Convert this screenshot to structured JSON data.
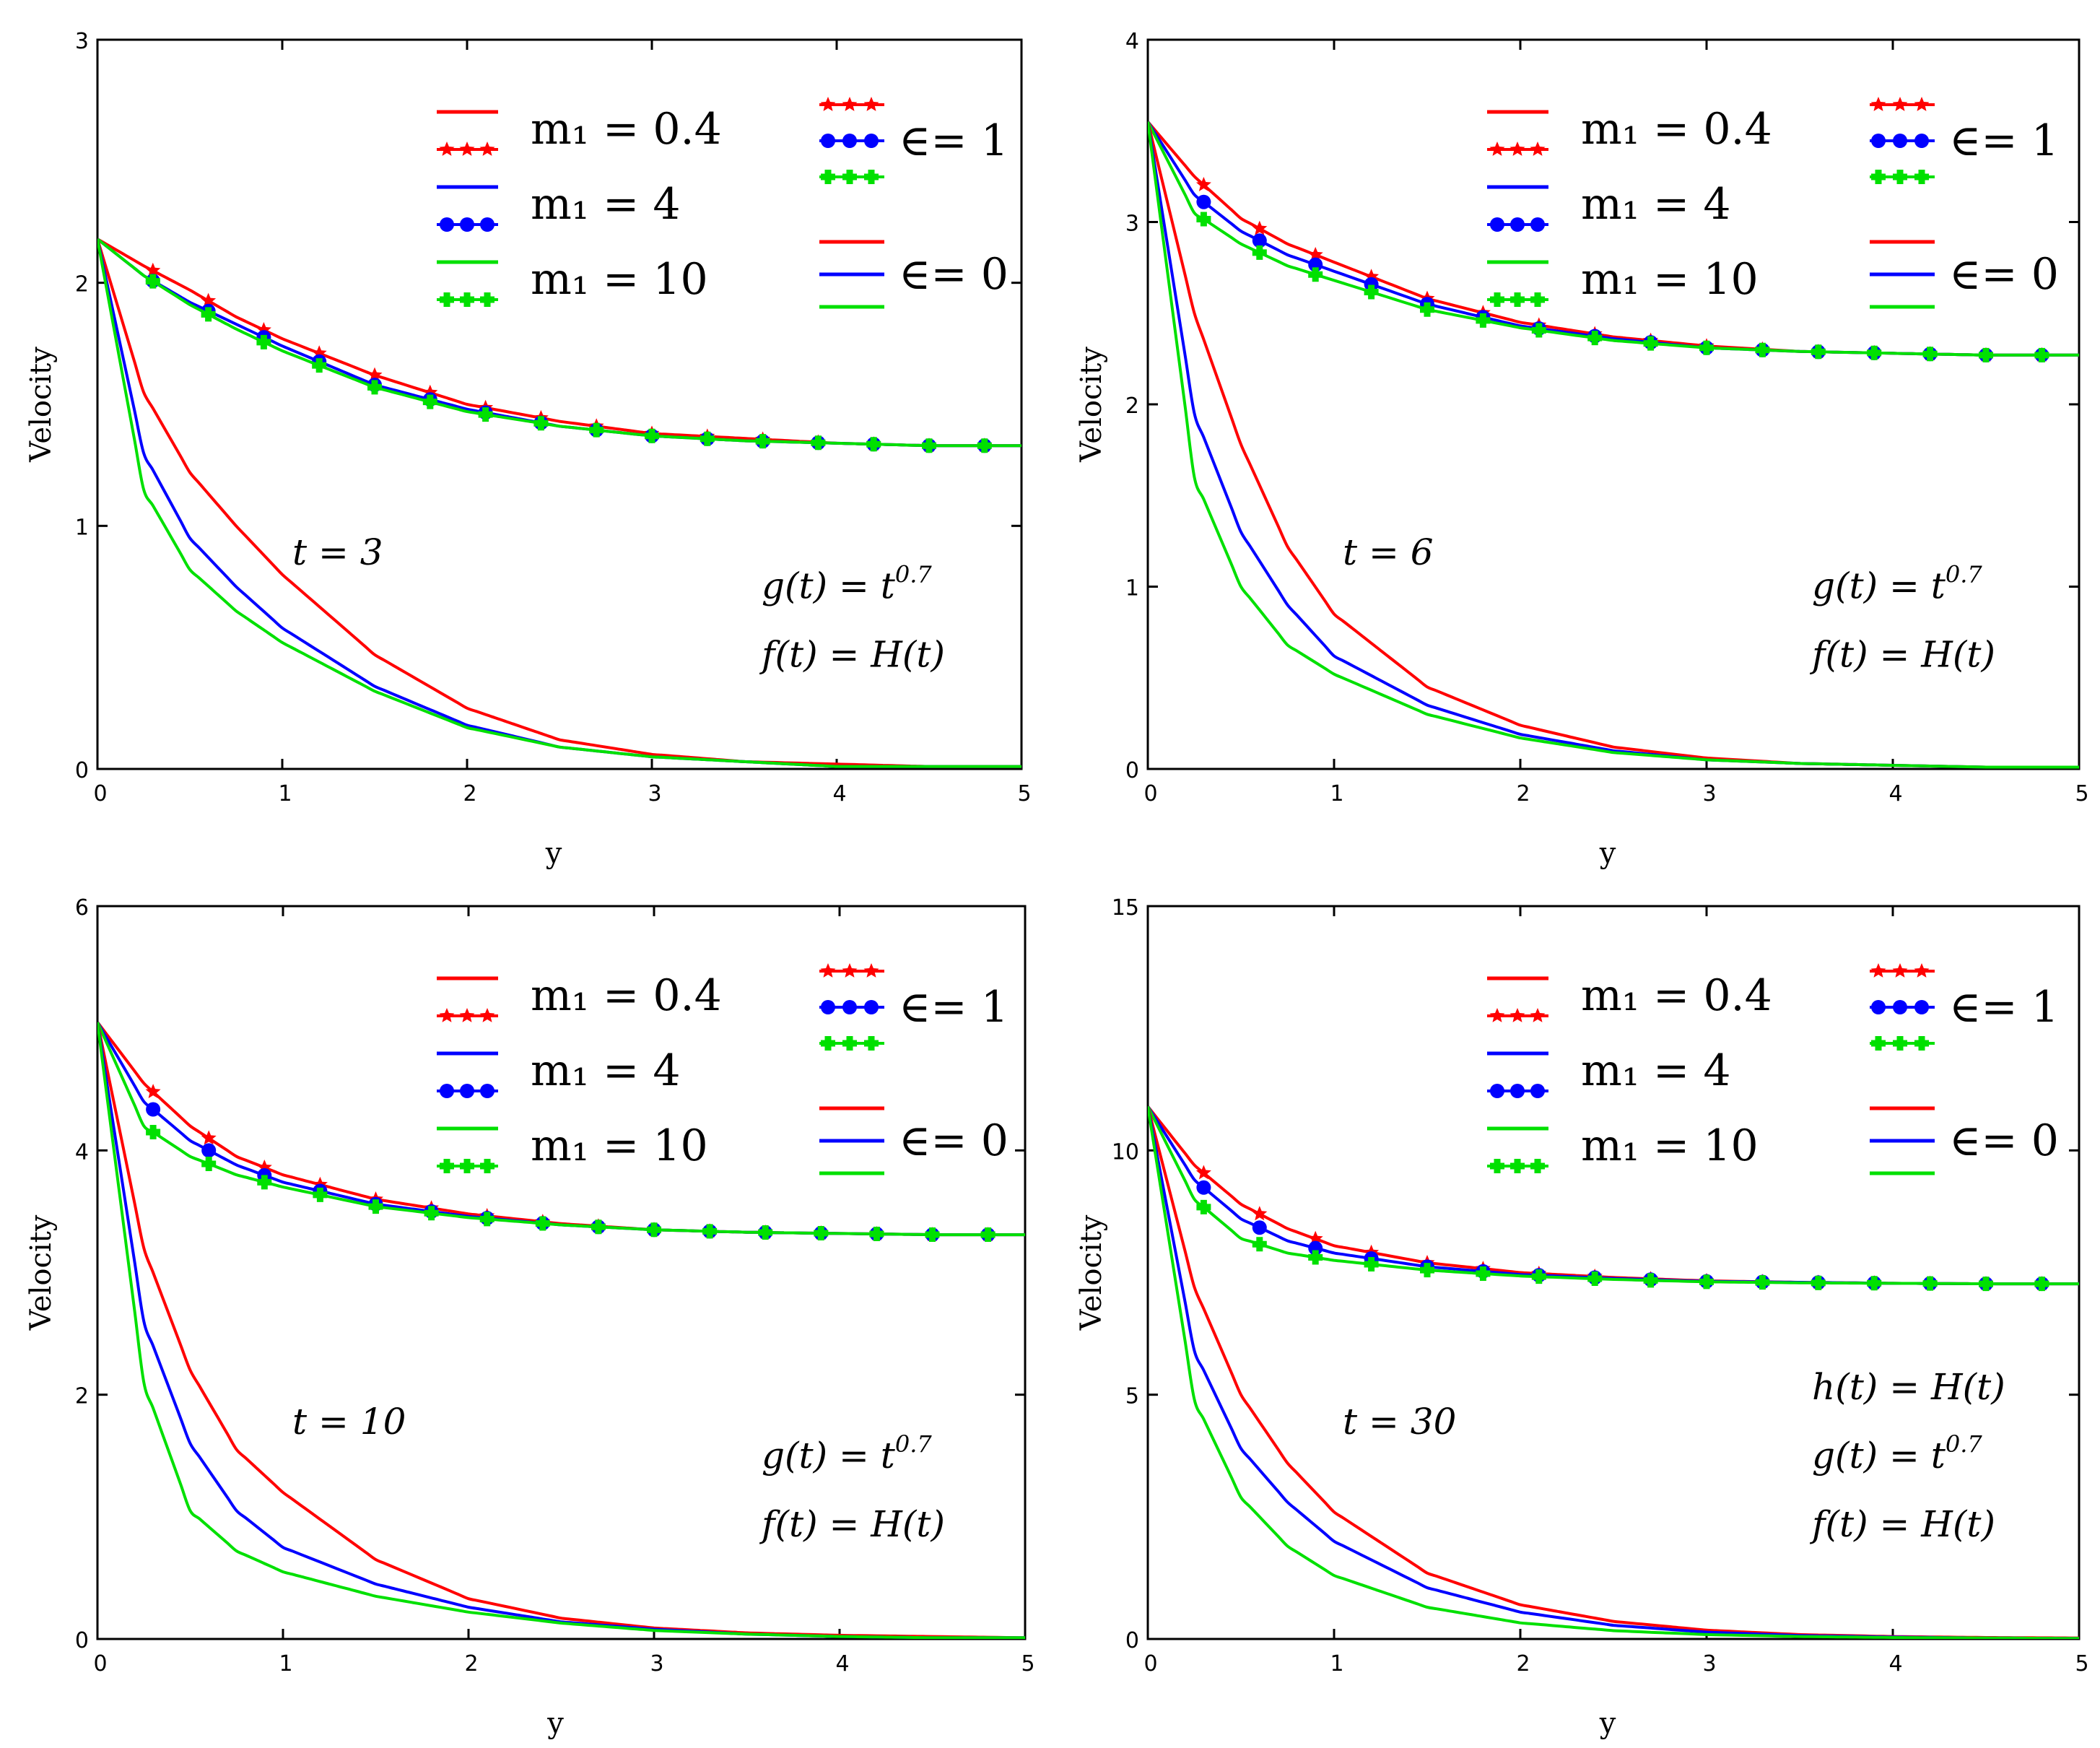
{
  "figure": {
    "ylabel": "Velocity",
    "xlabel": "y",
    "legend": {
      "m1_labels": [
        "m₁ = 0.4",
        "m₁ = 4",
        "m₁ = 10"
      ],
      "eps1_label": "∈= 1",
      "eps0_label": "∈= 0"
    },
    "colors": {
      "m0_4": "#ff0000",
      "m4": "#0000ff",
      "m10": "#00e000"
    }
  },
  "chart_data": [
    {
      "type": "line",
      "panel": "top-left",
      "annotation_t": "t = 3",
      "annotations": [
        "g(t) = t^0.7",
        "f(t) = H(t)"
      ],
      "xlim": [
        0,
        5
      ],
      "ylim": [
        0,
        3
      ],
      "xticks": [
        "0",
        "1",
        "2",
        "3",
        "4",
        "5"
      ],
      "yticks": [
        "0",
        "1",
        "2",
        "3"
      ],
      "xlabel": "y",
      "ylabel": "Velocity",
      "x": [
        0,
        0.25,
        0.5,
        0.75,
        1,
        1.5,
        2,
        2.5,
        3,
        3.5,
        4,
        4.5,
        5
      ],
      "series": [
        {
          "name": "m₁ = 0.4, ∈ = 1",
          "values": [
            2.18,
            2.07,
            1.97,
            1.86,
            1.77,
            1.62,
            1.5,
            1.43,
            1.38,
            1.36,
            1.34,
            1.33,
            1.33
          ]
        },
        {
          "name": "m₁ = 4, ∈ = 1",
          "values": [
            2.18,
            2.03,
            1.92,
            1.83,
            1.74,
            1.58,
            1.48,
            1.41,
            1.37,
            1.35,
            1.34,
            1.33,
            1.33
          ]
        },
        {
          "name": "m₁ = 10, ∈ = 1",
          "values": [
            2.18,
            2.03,
            1.91,
            1.81,
            1.72,
            1.57,
            1.47,
            1.41,
            1.37,
            1.35,
            1.34,
            1.33,
            1.33
          ]
        },
        {
          "name": "m₁ = 0.4, ∈ = 0",
          "values": [
            2.18,
            1.55,
            1.22,
            1.0,
            0.8,
            0.47,
            0.25,
            0.12,
            0.06,
            0.03,
            0.02,
            0.01,
            0.01
          ]
        },
        {
          "name": "m₁ = 4, ∈ = 0",
          "values": [
            2.18,
            1.3,
            0.95,
            0.75,
            0.58,
            0.34,
            0.18,
            0.09,
            0.05,
            0.03,
            0.01,
            0.01,
            0.01
          ]
        },
        {
          "name": "m₁ = 10, ∈ = 0",
          "values": [
            2.18,
            1.15,
            0.82,
            0.65,
            0.52,
            0.32,
            0.17,
            0.09,
            0.05,
            0.03,
            0.01,
            0.01,
            0.01
          ]
        }
      ]
    },
    {
      "type": "line",
      "panel": "top-right",
      "annotation_t": "t = 6",
      "annotations": [
        "g(t) = t^0.7",
        "f(t) = H(t)"
      ],
      "xlim": [
        0,
        5
      ],
      "ylim": [
        0,
        4
      ],
      "xticks": [
        "0",
        "1",
        "2",
        "3",
        "4",
        "5"
      ],
      "yticks": [
        "0",
        "1",
        "2",
        "3",
        "4"
      ],
      "xlabel": "y",
      "ylabel": "Velocity",
      "x": [
        0,
        0.25,
        0.5,
        0.75,
        1,
        1.5,
        2,
        2.5,
        3,
        3.5,
        4,
        4.5,
        5
      ],
      "series": [
        {
          "name": "m₁ = 0.4, ∈ = 1",
          "values": [
            3.55,
            3.25,
            3.02,
            2.88,
            2.78,
            2.58,
            2.45,
            2.37,
            2.32,
            2.29,
            2.28,
            2.27,
            2.27
          ]
        },
        {
          "name": "m₁ = 4, ∈ = 1",
          "values": [
            3.55,
            3.15,
            2.95,
            2.82,
            2.73,
            2.55,
            2.43,
            2.36,
            2.31,
            2.29,
            2.28,
            2.27,
            2.27
          ]
        },
        {
          "name": "m₁ = 10, ∈ = 1",
          "values": [
            3.55,
            3.05,
            2.88,
            2.76,
            2.68,
            2.52,
            2.42,
            2.35,
            2.31,
            2.29,
            2.28,
            2.27,
            2.27
          ]
        },
        {
          "name": "m₁ = 0.4, ∈ = 0",
          "values": [
            3.55,
            2.5,
            1.78,
            1.22,
            0.85,
            0.45,
            0.24,
            0.12,
            0.06,
            0.03,
            0.02,
            0.01,
            0.01
          ]
        },
        {
          "name": "m₁ = 4, ∈ = 0",
          "values": [
            3.55,
            1.95,
            1.3,
            0.9,
            0.62,
            0.35,
            0.19,
            0.1,
            0.05,
            0.03,
            0.02,
            0.01,
            0.01
          ]
        },
        {
          "name": "m₁ = 10, ∈ = 0",
          "values": [
            3.55,
            1.6,
            1.0,
            0.68,
            0.52,
            0.3,
            0.17,
            0.09,
            0.05,
            0.03,
            0.02,
            0.01,
            0.01
          ]
        }
      ]
    },
    {
      "type": "line",
      "panel": "bottom-left",
      "annotation_t": "t = 10",
      "annotations": [
        "g(t) = t^0.7",
        "f(t) = H(t)"
      ],
      "xlim": [
        0,
        5
      ],
      "ylim": [
        0,
        6
      ],
      "xticks": [
        "0",
        "1",
        "2",
        "3",
        "4",
        "5"
      ],
      "yticks": [
        "0",
        "2",
        "4",
        "6"
      ],
      "xlabel": "y",
      "ylabel": "Velocity",
      "x": [
        0,
        0.25,
        0.5,
        0.75,
        1,
        1.5,
        2,
        2.5,
        3,
        3.5,
        4,
        4.5,
        5
      ],
      "series": [
        {
          "name": "m₁ = 0.4, ∈ = 1",
          "values": [
            5.05,
            4.55,
            4.2,
            3.95,
            3.8,
            3.6,
            3.48,
            3.4,
            3.35,
            3.33,
            3.32,
            3.31,
            3.31
          ]
        },
        {
          "name": "m₁ = 4, ∈ = 1",
          "values": [
            5.05,
            4.4,
            4.08,
            3.88,
            3.74,
            3.56,
            3.46,
            3.39,
            3.35,
            3.33,
            3.32,
            3.31,
            3.31
          ]
        },
        {
          "name": "m₁ = 10, ∈ = 1",
          "values": [
            5.05,
            4.2,
            3.95,
            3.8,
            3.7,
            3.54,
            3.45,
            3.39,
            3.35,
            3.33,
            3.32,
            3.31,
            3.31
          ]
        },
        {
          "name": "m₁ = 0.4, ∈ = 0",
          "values": [
            5.05,
            3.2,
            2.2,
            1.55,
            1.2,
            0.65,
            0.33,
            0.17,
            0.09,
            0.05,
            0.03,
            0.02,
            0.01
          ]
        },
        {
          "name": "m₁ = 4, ∈ = 0",
          "values": [
            5.05,
            2.6,
            1.6,
            1.05,
            0.75,
            0.45,
            0.26,
            0.14,
            0.08,
            0.04,
            0.02,
            0.01,
            0.01
          ]
        },
        {
          "name": "m₁ = 10, ∈ = 0",
          "values": [
            5.05,
            2.1,
            1.05,
            0.72,
            0.55,
            0.35,
            0.22,
            0.13,
            0.07,
            0.04,
            0.02,
            0.01,
            0.01
          ]
        }
      ]
    },
    {
      "type": "line",
      "panel": "bottom-right",
      "annotation_t": "t = 30",
      "annotations": [
        "h(t) = H(t)",
        "g(t) = t^0.7",
        "f(t) = H(t)"
      ],
      "xlim": [
        0,
        5
      ],
      "ylim": [
        0,
        15
      ],
      "xticks": [
        "0",
        "1",
        "2",
        "3",
        "4",
        "5"
      ],
      "yticks": [
        "0",
        "5",
        "10",
        "15"
      ],
      "xlabel": "y",
      "ylabel": "Velocity",
      "x": [
        0,
        0.25,
        0.5,
        0.75,
        1,
        1.5,
        2,
        2.5,
        3,
        3.5,
        4,
        4.5,
        5
      ],
      "series": [
        {
          "name": "m₁ = 0.4, ∈ = 1",
          "values": [
            10.9,
            9.7,
            8.9,
            8.4,
            8.05,
            7.7,
            7.5,
            7.4,
            7.33,
            7.3,
            7.28,
            7.27,
            7.27
          ]
        },
        {
          "name": "m₁ = 4, ∈ = 1",
          "values": [
            10.9,
            9.4,
            8.6,
            8.15,
            7.9,
            7.62,
            7.46,
            7.38,
            7.32,
            7.3,
            7.28,
            7.27,
            7.27
          ]
        },
        {
          "name": "m₁ = 10, ∈ = 1",
          "values": [
            10.9,
            9.0,
            8.2,
            7.9,
            7.75,
            7.55,
            7.43,
            7.36,
            7.31,
            7.29,
            7.28,
            7.27,
            7.27
          ]
        },
        {
          "name": "m₁ = 0.4, ∈ = 0",
          "values": [
            10.9,
            7.2,
            5.0,
            3.6,
            2.6,
            1.35,
            0.7,
            0.36,
            0.18,
            0.09,
            0.05,
            0.03,
            0.02
          ]
        },
        {
          "name": "m₁ = 4, ∈ = 0",
          "values": [
            10.9,
            5.9,
            3.9,
            2.8,
            2.0,
            1.05,
            0.55,
            0.28,
            0.14,
            0.07,
            0.04,
            0.02,
            0.01
          ]
        },
        {
          "name": "m₁ = 10, ∈ = 0",
          "values": [
            10.9,
            4.9,
            2.9,
            1.9,
            1.3,
            0.65,
            0.33,
            0.17,
            0.09,
            0.05,
            0.03,
            0.02,
            0.01
          ]
        }
      ]
    }
  ]
}
